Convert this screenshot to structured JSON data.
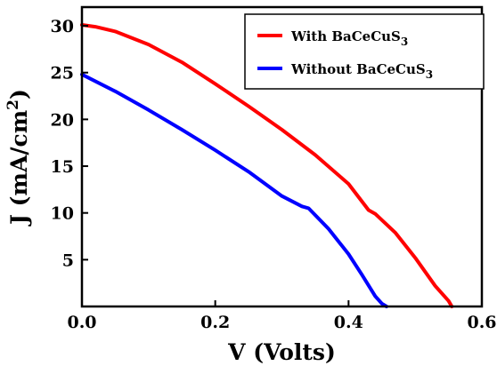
{
  "chart_data": {
    "type": "line",
    "title": "",
    "xlabel": "V (Volts)",
    "ylabel_main": "J (mA/cm",
    "ylabel_sup": "2",
    "ylabel_end": ")",
    "xlim": [
      0,
      0.6
    ],
    "ylim": [
      0,
      32
    ],
    "x_ticks": [
      0.0,
      0.2,
      0.4,
      0.6
    ],
    "x_tick_labels": [
      "0.0",
      "0.2",
      "0.4",
      "0.6"
    ],
    "y_ticks": [
      5,
      10,
      15,
      20,
      25,
      30
    ],
    "y_tick_labels": [
      "5",
      "10",
      "15",
      "20",
      "25",
      "30"
    ],
    "grid": false,
    "legend_position": "top-right",
    "series": [
      {
        "name_main": "With BaCeCuS",
        "name_sub": "3",
        "color": "#ff0000",
        "x": [
          0,
          0.02,
          0.05,
          0.1,
          0.15,
          0.2,
          0.25,
          0.3,
          0.35,
          0.4,
          0.43,
          0.44,
          0.47,
          0.5,
          0.53,
          0.55,
          0.555
        ],
        "y": [
          30.1,
          29.9,
          29.4,
          28.0,
          26.1,
          23.8,
          21.4,
          18.9,
          16.2,
          13.1,
          10.3,
          9.9,
          7.9,
          5.2,
          2.2,
          0.6,
          0
        ]
      },
      {
        "name_main": "Without BaCeCuS",
        "name_sub": "3",
        "color": "#0000ff",
        "x": [
          0,
          0.05,
          0.1,
          0.15,
          0.2,
          0.25,
          0.3,
          0.33,
          0.34,
          0.37,
          0.4,
          0.42,
          0.44,
          0.45,
          0.457
        ],
        "y": [
          24.8,
          23.0,
          21.0,
          18.9,
          16.7,
          14.4,
          11.8,
          10.7,
          10.5,
          8.3,
          5.6,
          3.4,
          1.1,
          0.3,
          0
        ]
      }
    ]
  }
}
